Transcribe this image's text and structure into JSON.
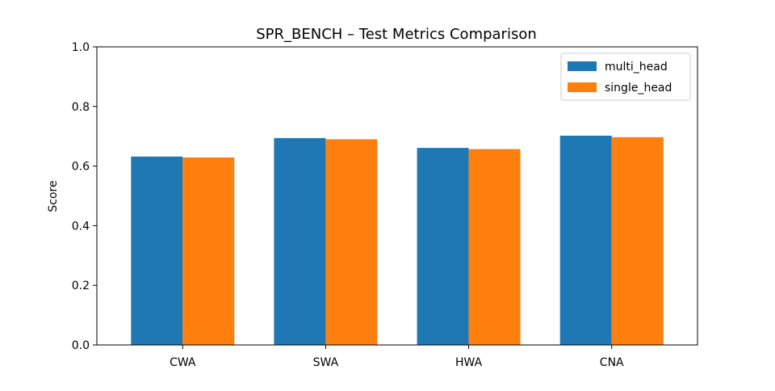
{
  "chart_data": {
    "type": "bar",
    "title": "SPR_BENCH – Test Metrics Comparison",
    "xlabel": "",
    "ylabel": "Score",
    "categories": [
      "CWA",
      "SWA",
      "HWA",
      "CNA"
    ],
    "series": [
      {
        "name": "multi_head",
        "color": "#1f77b4",
        "values": [
          0.632,
          0.694,
          0.661,
          0.702
        ]
      },
      {
        "name": "single_head",
        "color": "#ff7f0e",
        "values": [
          0.629,
          0.69,
          0.657,
          0.697
        ]
      }
    ],
    "ylim": [
      0,
      1.0
    ],
    "yticks": [
      "0.0",
      "0.2",
      "0.4",
      "0.6",
      "0.8",
      "1.0"
    ],
    "grid": false,
    "legend_position": "top-right"
  }
}
